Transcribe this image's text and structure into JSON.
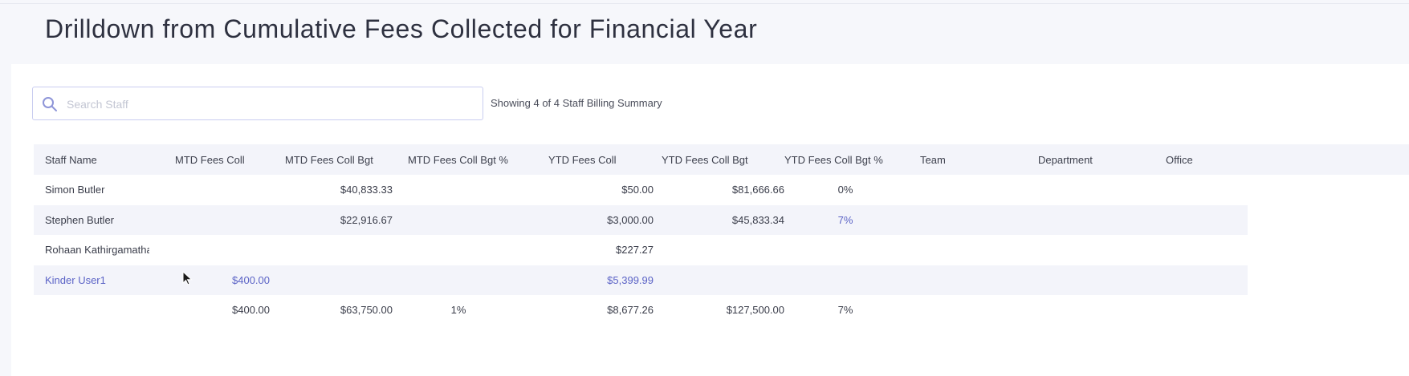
{
  "page": {
    "title": "Drilldown from Cumulative Fees Collected for Financial Year"
  },
  "search": {
    "placeholder": "Search Staff",
    "value": "",
    "icon": "search-icon"
  },
  "summary": {
    "showing_text": "Showing 4 of 4 Staff Billing Summary"
  },
  "colors": {
    "accent": "#5b63c6",
    "header_bg": "#f3f4fa",
    "search_border": "#c9cdf0"
  },
  "table": {
    "columns": [
      "Staff Name",
      "MTD Fees Coll",
      "MTD Fees Coll Bgt",
      "MTD Fees Coll Bgt %",
      "YTD Fees Coll",
      "YTD Fees Coll Bgt",
      "YTD Fees Coll Bgt %",
      "Team",
      "Department",
      "Office"
    ],
    "rows": [
      {
        "staff_name": "Simon Butler",
        "mtd_fees_coll": "",
        "mtd_fees_coll_bgt": "$40,833.33",
        "mtd_fees_coll_bgt_pct": "",
        "ytd_fees_coll": "$50.00",
        "ytd_fees_coll_bgt": "$81,666.66",
        "ytd_fees_coll_bgt_pct": "0%",
        "team": "",
        "department": "",
        "office": ""
      },
      {
        "staff_name": "Stephen Butler",
        "mtd_fees_coll": "",
        "mtd_fees_coll_bgt": "$22,916.67",
        "mtd_fees_coll_bgt_pct": "",
        "ytd_fees_coll": "$3,000.00",
        "ytd_fees_coll_bgt": "$45,833.34",
        "ytd_fees_coll_bgt_pct": "7%",
        "team": "",
        "department": "",
        "office": ""
      },
      {
        "staff_name": "Rohaan Kathirgamatha...",
        "mtd_fees_coll": "",
        "mtd_fees_coll_bgt": "",
        "mtd_fees_coll_bgt_pct": "",
        "ytd_fees_coll": "$227.27",
        "ytd_fees_coll_bgt": "",
        "ytd_fees_coll_bgt_pct": "",
        "team": "",
        "department": "",
        "office": ""
      },
      {
        "staff_name": "Kinder User1",
        "mtd_fees_coll": "$400.00",
        "mtd_fees_coll_bgt": "",
        "mtd_fees_coll_bgt_pct": "",
        "ytd_fees_coll": "$5,399.99",
        "ytd_fees_coll_bgt": "",
        "ytd_fees_coll_bgt_pct": "",
        "team": "",
        "department": "",
        "office": ""
      }
    ],
    "totals": {
      "mtd_fees_coll": "$400.00",
      "mtd_fees_coll_bgt": "$63,750.00",
      "mtd_fees_coll_bgt_pct": "1%",
      "ytd_fees_coll": "$8,677.26",
      "ytd_fees_coll_bgt": "$127,500.00",
      "ytd_fees_coll_bgt_pct": "7%"
    }
  }
}
